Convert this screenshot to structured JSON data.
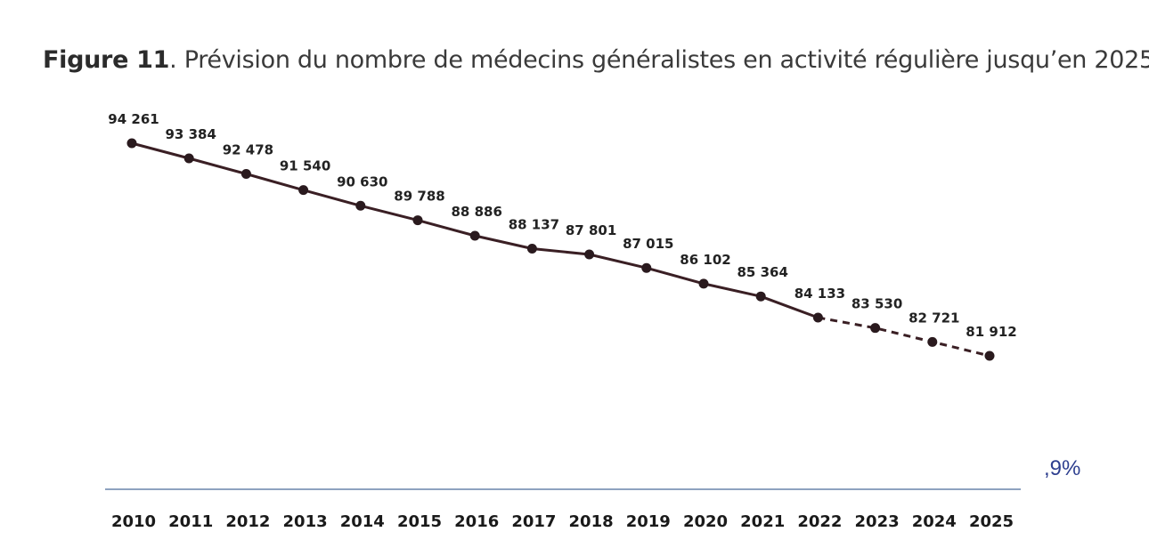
{
  "title": {
    "label": "Figure 11",
    "text": ". Prévision du nombre de médecins généralistes en activité régulière jusqu’en 2025"
  },
  "side_note": ",9%",
  "colors": {
    "line": "#3a1f24",
    "axis": "#4a6a9a",
    "note": "#2e3f8f"
  },
  "chart_data": {
    "type": "line",
    "title": "",
    "xlabel": "",
    "ylabel": "",
    "categories": [
      "2010",
      "2011",
      "2012",
      "2013",
      "2014",
      "2015",
      "2016",
      "2017",
      "2018",
      "2019",
      "2020",
      "2021",
      "2022",
      "2023",
      "2024",
      "2025"
    ],
    "values": [
      94261,
      93384,
      92478,
      91540,
      90630,
      89788,
      88886,
      88137,
      87801,
      87015,
      86102,
      85364,
      84133,
      83530,
      82721,
      81912
    ],
    "value_labels": [
      "94 261",
      "93 384",
      "92 478",
      "91 540",
      "90 630",
      "89 788",
      "88 886",
      "88 137",
      "87 801",
      "87 015",
      "86 102",
      "85 364",
      "84 133",
      "83 530",
      "82 721",
      "81 912"
    ],
    "observed_until": "2022",
    "projected_style": "dashed",
    "grid": false,
    "legend": "none"
  }
}
